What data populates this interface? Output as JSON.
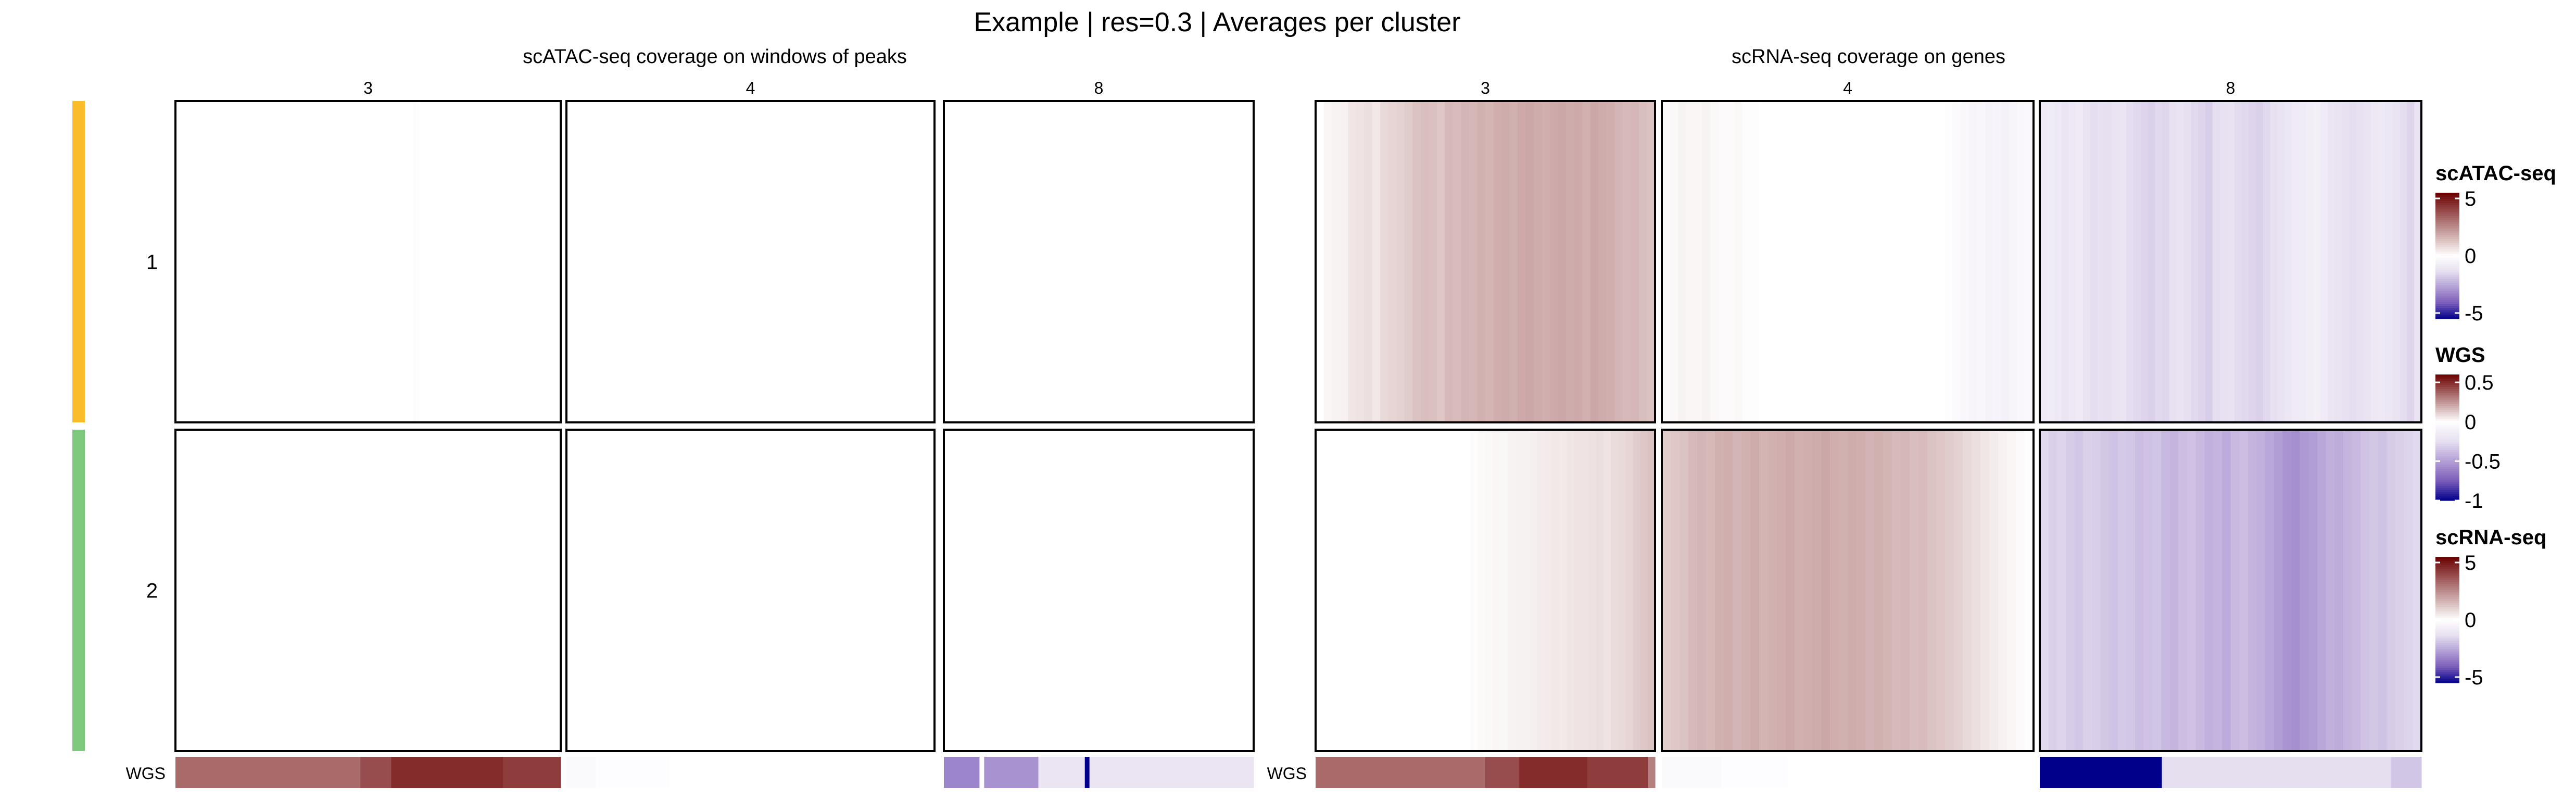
{
  "title": "Example | res=0.3 | Averages per cluster",
  "chart_data": {
    "type": "heatmap",
    "title": "Example | res=0.3 | Averages per cluster",
    "panels": [
      {
        "key": "atac",
        "subtitle": "scATAC-seq coverage on windows of peaks",
        "columns": [
          "3",
          "4",
          "8"
        ]
      },
      {
        "key": "rna",
        "subtitle": "scRNA-seq coverage on genes",
        "columns": [
          "3",
          "4",
          "8"
        ]
      }
    ],
    "rows": [
      "1",
      "2"
    ],
    "row_colors": [
      "#FBBC2C",
      "#7DCA7F"
    ],
    "wgs_label": "WGS",
    "heat": {
      "atac": {
        "1": {
          "3": [
            0,
            0,
            0,
            0,
            0,
            0,
            0,
            0,
            0,
            0,
            0,
            0,
            0,
            0,
            0,
            0,
            0,
            0,
            0,
            0,
            0,
            0,
            0,
            0,
            0,
            0,
            0,
            0,
            0,
            0,
            0,
            0,
            0,
            0,
            0,
            0,
            0,
            0.05,
            0,
            0,
            0,
            0,
            0,
            0,
            0,
            0,
            0,
            0,
            0,
            0,
            0,
            0,
            0,
            0,
            0,
            0,
            0,
            0,
            0,
            0
          ],
          "4": [
            0,
            0,
            0,
            0,
            0,
            0,
            0,
            0,
            0,
            0,
            0,
            0,
            0,
            0,
            0,
            0,
            0,
            0,
            0,
            0,
            0,
            0,
            0,
            0,
            0,
            0,
            0,
            0,
            0,
            0,
            0,
            0,
            0,
            0,
            0,
            0,
            0,
            0,
            0,
            0,
            0,
            0,
            0,
            0,
            0,
            0,
            0,
            0,
            0,
            0,
            0,
            0,
            0,
            0,
            0,
            0,
            0,
            0,
            0,
            0
          ],
          "8": [
            0,
            0,
            0,
            0,
            0,
            0,
            0,
            0,
            0,
            0,
            0,
            0,
            0,
            0,
            0,
            0,
            0,
            0,
            0,
            0,
            0,
            0,
            0,
            0,
            0,
            0,
            0,
            0,
            0,
            0,
            0,
            0,
            0,
            0,
            0,
            0,
            0,
            0,
            0,
            0,
            0,
            0,
            0,
            0,
            0,
            0,
            0,
            0,
            0,
            0,
            0,
            0,
            0,
            0,
            0,
            0,
            0,
            0,
            0,
            0
          ]
        },
        "2": {
          "3": [
            0,
            0,
            0,
            0,
            0,
            0,
            0,
            0,
            0,
            0,
            0,
            0,
            0,
            0,
            0,
            0,
            0,
            0,
            0,
            0,
            0,
            0,
            0,
            0,
            0,
            0,
            0,
            0,
            0,
            0,
            0,
            0,
            0,
            0,
            0,
            0,
            0,
            0,
            0,
            0,
            0,
            0,
            0,
            0,
            0,
            0,
            0,
            0,
            0,
            0,
            0,
            0,
            0,
            0,
            0,
            0,
            0,
            0,
            0,
            0
          ],
          "4": [
            0,
            0,
            0,
            0,
            0,
            0,
            0,
            0,
            0,
            0,
            0,
            0,
            0,
            0,
            0,
            0,
            0,
            0,
            0,
            0,
            0,
            0,
            0,
            0,
            0,
            0,
            0,
            0,
            0,
            0,
            0,
            0,
            0,
            0,
            0,
            0,
            0,
            0,
            0,
            0,
            0,
            0,
            0,
            0,
            0,
            0,
            0,
            0,
            0,
            0,
            0,
            0,
            0,
            0,
            0,
            0,
            0,
            0,
            0,
            0
          ],
          "8": [
            0,
            0,
            0,
            0,
            0,
            0,
            0,
            0,
            0,
            0,
            0,
            0,
            0,
            0,
            0,
            0,
            0,
            0,
            0,
            0,
            0,
            0,
            0,
            0,
            0,
            0,
            0,
            0,
            0,
            0,
            0,
            0,
            0,
            0,
            0,
            0,
            0,
            0,
            0,
            0,
            0,
            0,
            0,
            0,
            0,
            0,
            0,
            0,
            0,
            0,
            0,
            0,
            0,
            0,
            0,
            0,
            0,
            0,
            0,
            0
          ]
        }
      },
      "rna": {
        "1": {
          "3": [
            0,
            0.2,
            0.25,
            0.3,
            0.55,
            0.6,
            0.7,
            0.5,
            0.8,
            0.9,
            1.0,
            1.1,
            1.3,
            1.4,
            1.35,
            1.2,
            1.5,
            1.45,
            1.6,
            1.55,
            1.7,
            1.6,
            1.75,
            1.8,
            1.7,
            1.85,
            1.9,
            1.8,
            1.75,
            1.85,
            1.9,
            1.8,
            1.85,
            1.7,
            1.9,
            1.8,
            1.75,
            1.6,
            1.5,
            1.55,
            1.4,
            1.3
          ],
          "4": [
            0.1,
            0.15,
            0.25,
            0.2,
            0.2,
            0.25,
            0.15,
            0.1,
            0.1,
            0.15,
            0.05,
            0.05,
            0,
            0,
            0,
            0,
            0,
            0,
            0,
            0,
            0,
            0,
            0,
            0,
            0,
            0,
            0,
            0,
            0,
            0,
            0,
            0,
            0,
            0,
            0,
            -0.1,
            -0.2,
            -0.35,
            -0.45,
            -0.4,
            -0.55,
            -0.5,
            -0.6,
            -0.45,
            -0.35,
            -0.3
          ],
          "8": [
            -0.9,
            -0.8,
            -0.95,
            -1.1,
            -1.0,
            -0.9,
            -1.2,
            -1.4,
            -1.3,
            -1.35,
            -1.2,
            -1.1,
            -1.4,
            -1.5,
            -1.6,
            -1.7,
            -1.5,
            -1.55,
            -1.3,
            -1.2,
            -1.35,
            -1.5,
            -1.6,
            -1.75,
            -1.4,
            -1.3,
            -1.25,
            -1.45,
            -1.5,
            -1.6,
            -1.7,
            -1.5,
            -1.3,
            -1.2,
            -1.05,
            -0.9,
            -0.8,
            -0.75,
            -0.7,
            -0.9,
            -1.1,
            -1.2,
            -1.3,
            -1.4,
            -1.3,
            -1.2,
            -1.0,
            -0.95,
            -1.05,
            -1.2,
            -1.4,
            -1.6,
            -1.2
          ]
        },
        "2": {
          "3": [
            0,
            0,
            0,
            0,
            0,
            0,
            0,
            0,
            0,
            0,
            0,
            0,
            0,
            0,
            0,
            0,
            0,
            0,
            0,
            0,
            0,
            0.08,
            0.12,
            0.15,
            0.2,
            0.18,
            0.25,
            0.3,
            0.28,
            0.35,
            0.4,
            0.45,
            0.5,
            0.48,
            0.55,
            0.6,
            0.58,
            0.65,
            0.7,
            0.6,
            0.75,
            0.8,
            0.9,
            1.1,
            1.2,
            1.3
          ],
          "4": [
            1.1,
            1.2,
            1.3,
            1.5,
            1.6,
            1.5,
            1.7,
            1.75,
            1.6,
            1.7,
            1.8,
            1.65,
            1.7,
            1.75,
            1.85,
            1.7,
            1.75,
            1.8,
            1.9,
            1.75,
            1.7,
            1.8,
            1.75,
            1.65,
            1.7,
            1.6,
            1.5,
            1.55,
            1.4,
            1.45,
            1.3,
            1.2,
            1.1,
            1.0,
            0.8,
            0.7,
            0.55,
            0.4,
            0.3,
            0.2,
            0.1,
            0.05
          ],
          "8": [
            -1.5,
            -1.7,
            -1.6,
            -1.8,
            -1.9,
            -1.7,
            -1.75,
            -1.9,
            -2.0,
            -1.85,
            -1.9,
            -2.1,
            -2.0,
            -1.95,
            -2.2,
            -2.3,
            -2.1,
            -2.0,
            -2.2,
            -2.4,
            -2.3,
            -2.5,
            -2.2,
            -2.1,
            -2.3,
            -2.4,
            -2.6,
            -2.8,
            -3.0,
            -3.1,
            -2.9,
            -2.8,
            -2.6,
            -2.4,
            -2.5,
            -2.3,
            -2.2,
            -2.0,
            -1.9,
            -2.0,
            -1.8,
            -1.7,
            -1.6,
            -1.5
          ]
        }
      }
    },
    "wgs": {
      "atac": {
        "3": [
          {
            "f": 0.48,
            "v": 0.35
          },
          {
            "f": 0.08,
            "v": 0.42
          },
          {
            "f": 0.29,
            "v": 0.5
          },
          {
            "f": 0.15,
            "v": 0.46
          }
        ],
        "4": [
          {
            "f": 0.08,
            "v": -0.05
          },
          {
            "f": 0.2,
            "v": -0.02
          },
          {
            "f": 0.72,
            "v": 0
          }
        ],
        "8": [
          {
            "f": 0.115,
            "v": -0.6
          },
          {
            "f": 0.015,
            "v": 0
          },
          {
            "f": 0.175,
            "v": -0.55
          },
          {
            "f": 0.15,
            "v": -0.2
          },
          {
            "f": 0.015,
            "v": -1.0
          },
          {
            "f": 0.53,
            "v": -0.2
          }
        ]
      },
      "rna": {
        "3": [
          {
            "f": 0.5,
            "v": 0.35
          },
          {
            "f": 0.1,
            "v": 0.42
          },
          {
            "f": 0.2,
            "v": 0.5
          },
          {
            "f": 0.18,
            "v": 0.46
          },
          {
            "f": 0.02,
            "v": 0.3
          }
        ],
        "4": [
          {
            "f": 0.16,
            "v": -0.05
          },
          {
            "f": 0.18,
            "v": -0.02
          },
          {
            "f": 0.66,
            "v": 0
          }
        ],
        "8": [
          {
            "f": 0.32,
            "v": -1.0
          },
          {
            "f": 0.6,
            "v": -0.25
          },
          {
            "f": 0.08,
            "v": -0.35
          }
        ]
      }
    },
    "legends": [
      {
        "name": "scATAC-seq",
        "ticks": [
          {
            "v": 5,
            "label": "5"
          },
          {
            "v": 0,
            "label": "0"
          },
          {
            "v": -5,
            "label": "-5"
          }
        ],
        "range": [
          -5.5,
          5.5
        ]
      },
      {
        "name": "WGS",
        "ticks": [
          {
            "v": 0.5,
            "label": "0.5"
          },
          {
            "v": 0,
            "label": "0"
          },
          {
            "v": -0.5,
            "label": "-0.5"
          },
          {
            "v": -1,
            "label": "-1"
          }
        ],
        "range": [
          -1.0,
          0.6
        ]
      },
      {
        "name": "scRNA-seq",
        "ticks": [
          {
            "v": 5,
            "label": "5"
          },
          {
            "v": 0,
            "label": "0"
          },
          {
            "v": -5,
            "label": "-5"
          }
        ],
        "range": [
          -5.5,
          5.5
        ]
      }
    ],
    "colors": {
      "high": "#6B0000",
      "mid": "#FFFFFF",
      "low": "#00008B"
    }
  }
}
